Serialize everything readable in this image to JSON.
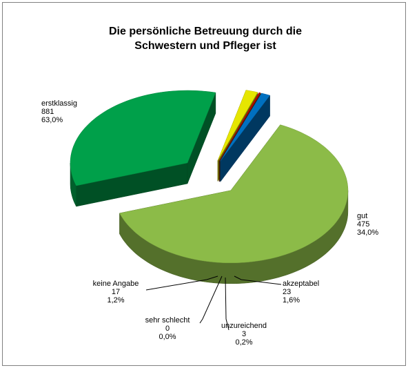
{
  "chart_data": {
    "type": "pie3d",
    "title": [
      "Die persönliche Betreuung durch die",
      "Schwestern und Pfleger ist"
    ],
    "categories": [
      "erstklassig",
      "gut",
      "akzeptabel",
      "unzureichend",
      "sehr schlecht",
      "keine Angabe"
    ],
    "values": [
      881,
      475,
      23,
      3,
      0,
      17
    ],
    "shares": [
      63.0,
      34.0,
      1.6,
      0.2,
      0.0,
      1.2
    ],
    "share_labels": [
      "63,0%",
      "34,0%",
      "1,6%",
      "0,2%",
      "0,0%",
      "1,2%"
    ],
    "colors": [
      "#8cbb48",
      "#00a04a",
      "#e6e600",
      "#c00000",
      "#7b3000",
      "#0070c0"
    ]
  }
}
